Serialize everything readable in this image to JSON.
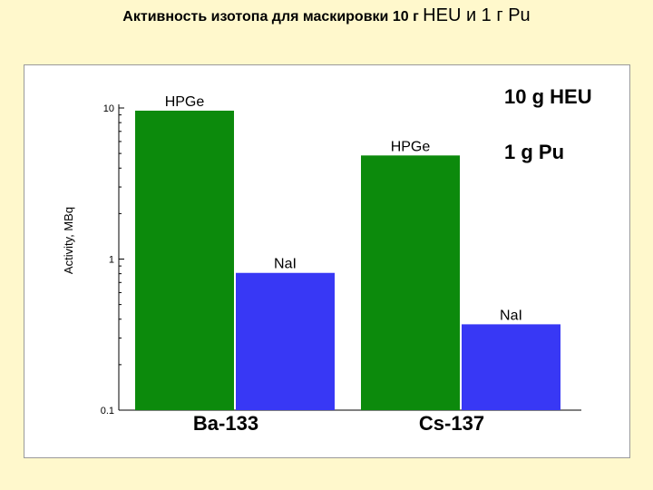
{
  "slide": {
    "title_part1": "Активность изотопа для маскировки 10 г ",
    "title_part2": "HEU и 1 г Pu"
  },
  "colors": {
    "background": "#fff8cc",
    "hpge": "#0c8a0c",
    "nai": "#3838f5"
  },
  "chart_data": {
    "type": "bar",
    "categories": [
      "Ba-133",
      "Cs-137"
    ],
    "series": [
      {
        "name": "HPGe",
        "values": [
          9.6,
          4.85
        ]
      },
      {
        "name": "NaI",
        "values": [
          0.81,
          0.37
        ]
      }
    ],
    "ylabel": "Activity, MBq",
    "yscale": "log",
    "ylim": [
      0.1,
      10
    ],
    "yticks": [
      {
        "value": 10,
        "label": "10"
      },
      {
        "value": 1,
        "label": "1"
      },
      {
        "value": 0.1,
        "label": "0.1"
      }
    ],
    "annotations": [
      "10 g HEU",
      "1 g Pu"
    ]
  }
}
